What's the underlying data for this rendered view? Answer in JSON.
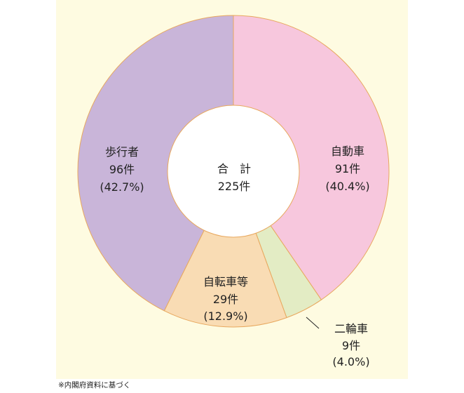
{
  "chart_data": {
    "type": "pie",
    "donut": true,
    "categories": [
      "自動車",
      "二輪車",
      "自転車等",
      "歩行者"
    ],
    "values": [
      91,
      9,
      29,
      96
    ],
    "value_labels": [
      "91件",
      "9件",
      "29件",
      "96件"
    ],
    "percent_labels": [
      "(40.4%)",
      "(4.0%)",
      "(12.9%)",
      "(42.7%)"
    ],
    "colors": [
      "#f7c7dd",
      "#e3ecc4",
      "#f9dcb4",
      "#c9b5d9"
    ],
    "stroke_color": "#e8a85e",
    "center_label": {
      "title": "合　計",
      "value": "225件"
    },
    "start": "top",
    "direction": "clockwise"
  },
  "footnote": "※内閣府資料に基づく"
}
